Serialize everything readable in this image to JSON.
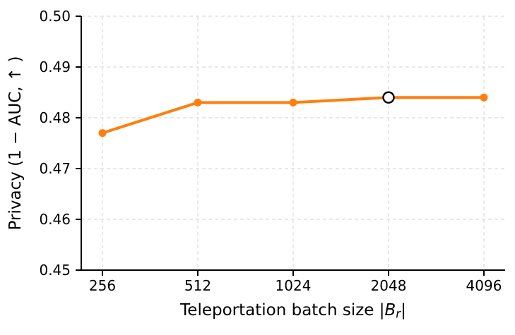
{
  "chart_data": {
    "type": "line",
    "title": "",
    "xlabel": "Teleportation batch size |B_r|",
    "xlabel_parts": {
      "prefix": "Teleportation batch size ",
      "open_bar": "|",
      "symbol": "B",
      "subscript": "r",
      "close_bar": "|"
    },
    "ylabel": "Privacy (1 − AUC, ↑ )",
    "categories": [
      "256",
      "512",
      "1024",
      "2048",
      "4096"
    ],
    "yticks": [
      "0.45",
      "0.46",
      "0.47",
      "0.48",
      "0.49",
      "0.50"
    ],
    "ylim": [
      0.45,
      0.5
    ],
    "series": [
      {
        "values": [
          0.477,
          0.483,
          0.483,
          0.484,
          0.484
        ],
        "color": "#ff7f0e"
      }
    ],
    "highlight": {
      "index": 3,
      "category": "2048",
      "marker": "open-circle",
      "fill": "#ffffff",
      "edge": "#000000"
    },
    "grid": "dashed",
    "legend_position": "none"
  },
  "colors": {
    "line": "#ff7f0e",
    "grid": "#dcdcdc",
    "axis": "#000000",
    "background": "#ffffff"
  }
}
